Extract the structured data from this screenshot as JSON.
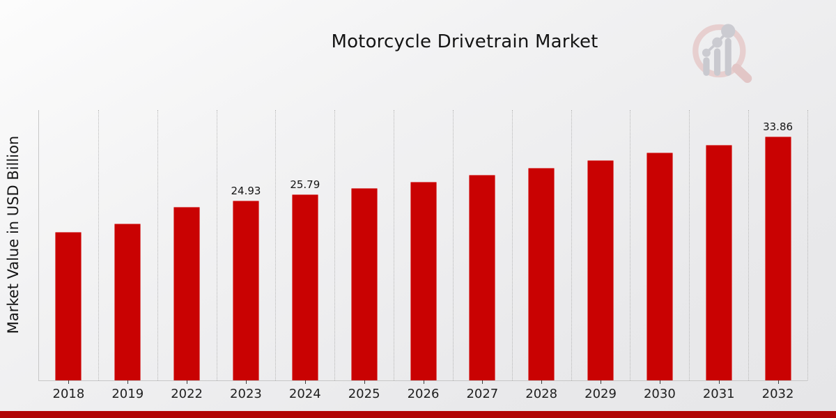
{
  "header": {
    "title": "Motorcycle Drivetrain Market"
  },
  "watermark": {
    "icon": "mrfr-magnifier-barchart-logo"
  },
  "chart_data": {
    "type": "bar",
    "title": "Motorcycle Drivetrain Market",
    "xlabel": "",
    "ylabel": "Market Value in USD Billion",
    "categories": [
      "2018",
      "2019",
      "2022",
      "2023",
      "2024",
      "2025",
      "2026",
      "2027",
      "2028",
      "2029",
      "2030",
      "2031",
      "2032"
    ],
    "values": [
      20.6,
      21.8,
      24.1,
      24.93,
      25.79,
      26.68,
      27.61,
      28.56,
      29.55,
      30.57,
      31.63,
      32.72,
      33.86
    ],
    "data_labels": [
      null,
      null,
      null,
      "24.93",
      "25.79",
      null,
      null,
      null,
      null,
      null,
      null,
      null,
      "33.86"
    ],
    "ylim": [
      0,
      37.5
    ],
    "grid": "vertical-dotted",
    "legend": "none",
    "colors": {
      "bar": "#c90202",
      "grid": "#b7b7b7",
      "axis": "#c7c7c7",
      "banner": "#b10505",
      "title_text": "#141414",
      "watermark_ring": "#e7cfcf",
      "watermark_bars": "#c9c9cf"
    }
  }
}
